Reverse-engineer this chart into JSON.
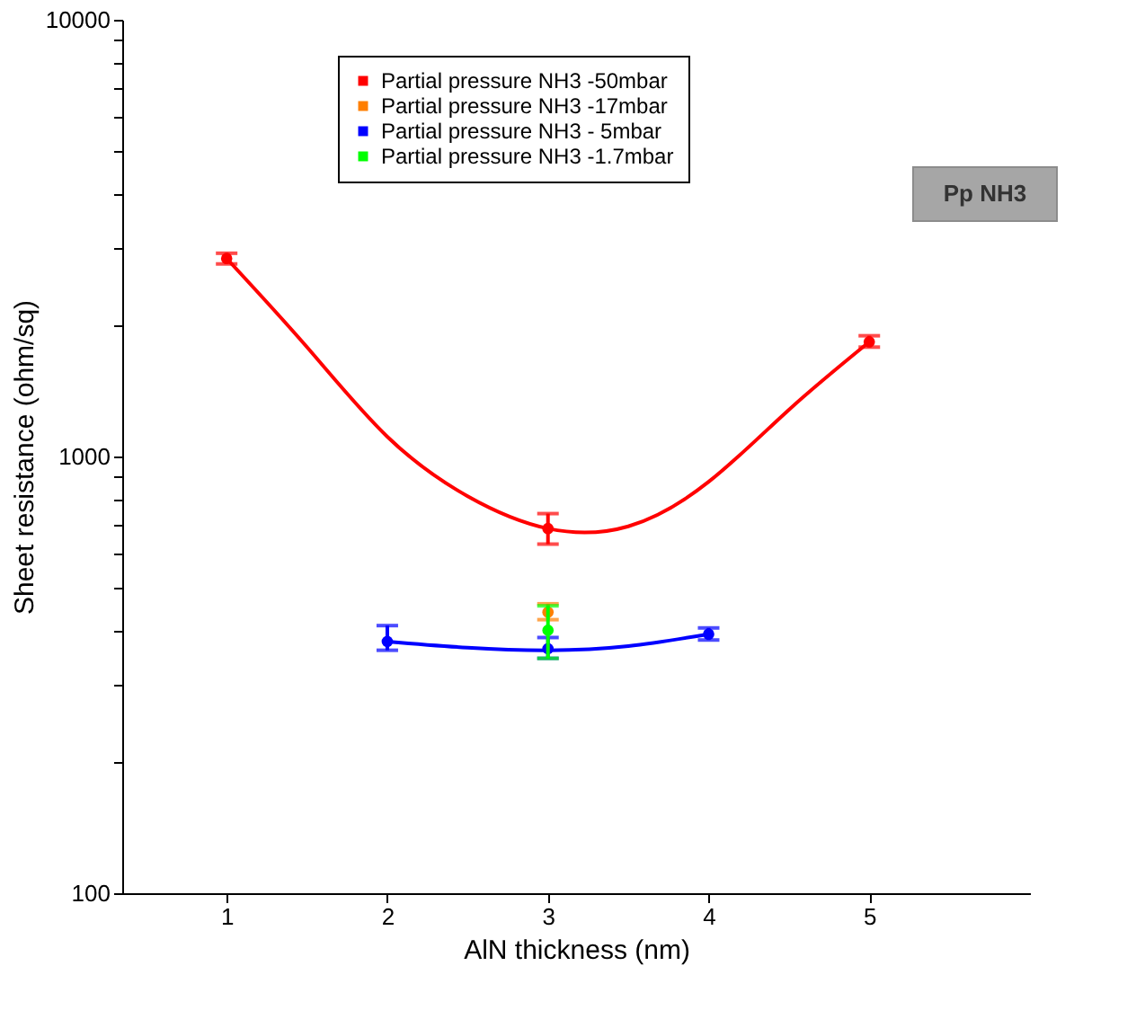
{
  "chart_data": {
    "type": "scatter",
    "xlabel": "AlN thickness (nm)",
    "ylabel": "Sheet resistance (ohm/sq)",
    "log": "y",
    "xlim": [
      0.35,
      6
    ],
    "xticks": [
      1,
      2,
      3,
      4,
      5
    ],
    "ylim": [
      100,
      10000
    ],
    "yticks": [
      100,
      {
        "value": 200,
        "label": null
      },
      {
        "value": 300,
        "label": null
      },
      {
        "value": 400,
        "label": null
      },
      {
        "value": 500,
        "label": null
      },
      {
        "value": 600,
        "label": null
      },
      {
        "value": 700,
        "label": null
      },
      {
        "value": 800,
        "label": null
      },
      {
        "value": 900,
        "label": null
      },
      1000,
      {
        "value": 2000,
        "label": null
      },
      {
        "value": 3000,
        "label": null
      },
      {
        "value": 4000,
        "label": null
      },
      {
        "value": 5000,
        "label": null
      },
      {
        "value": 6000,
        "label": null
      },
      {
        "value": 7000,
        "label": null
      },
      {
        "value": 8000,
        "label": null
      },
      {
        "value": 9000,
        "label": null
      },
      10000
    ],
    "grid": false,
    "legend": "top",
    "marker": "circle",
    "series": [
      {
        "type": "line",
        "line_style": "solid",
        "marker": "none",
        "color": "#ff0000",
        "x": [
          1,
          1.5,
          2,
          2.5,
          3,
          3.5,
          4,
          4.5,
          5
        ],
        "values": [
          2840,
          1780,
          1110,
          811,
          684,
          692,
          875,
          1280,
          1830
        ]
      },
      {
        "type": "line",
        "line_style": "solid",
        "marker": "none",
        "color": "#0000ff",
        "x": [
          2,
          2.5,
          3,
          3.5,
          4
        ],
        "values": [
          377,
          365,
          360,
          368,
          392
        ]
      },
      {
        "name": "Partial pressure NH3 -50mbar",
        "color": "#ff0000",
        "x": [
          1,
          3,
          5
        ],
        "values": [
          2840,
          684,
          1830
        ],
        "errors": [
          [
            2760,
            2920
          ],
          [
            630,
            740
          ],
          [
            1780,
            1890
          ]
        ]
      },
      {
        "name": "Partial pressure NH3 -17mbar",
        "color": "#ff7f00",
        "x": [
          3
        ],
        "values": [
          440
        ],
        "errors": [
          [
            423,
            460
          ]
        ]
      },
      {
        "name": "Partial pressure NH3 - 5mbar",
        "color": "#0000ff",
        "x": [
          2,
          3,
          4
        ],
        "values": [
          377,
          363,
          392
        ],
        "errors": [
          [
            360,
            410
          ],
          [
            345,
            385
          ],
          [
            380,
            405
          ]
        ]
      },
      {
        "name": "Partial pressure NH3 -1.7mbar",
        "color": "#00ff00",
        "x": [
          3
        ],
        "values": [
          400
        ],
        "errors": [
          [
            345,
            455
          ]
        ]
      }
    ],
    "annotations": [
      "Pp NH3"
    ]
  }
}
